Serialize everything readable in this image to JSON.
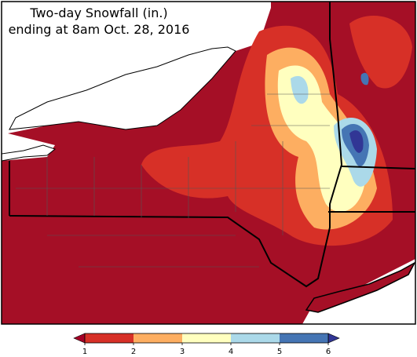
{
  "title": [
    "Two-day Snowfall (in.)",
    "ending at 8am Oct. 28, 2016"
  ],
  "colorbar": {
    "ticks": [
      1,
      2,
      3,
      4,
      5,
      6
    ],
    "colors": [
      "#d73027",
      "#fdae61",
      "#ffffbf",
      "#abd9e9",
      "#4575b4"
    ],
    "under_color": "#a50026",
    "over_color": "#313695"
  }
}
